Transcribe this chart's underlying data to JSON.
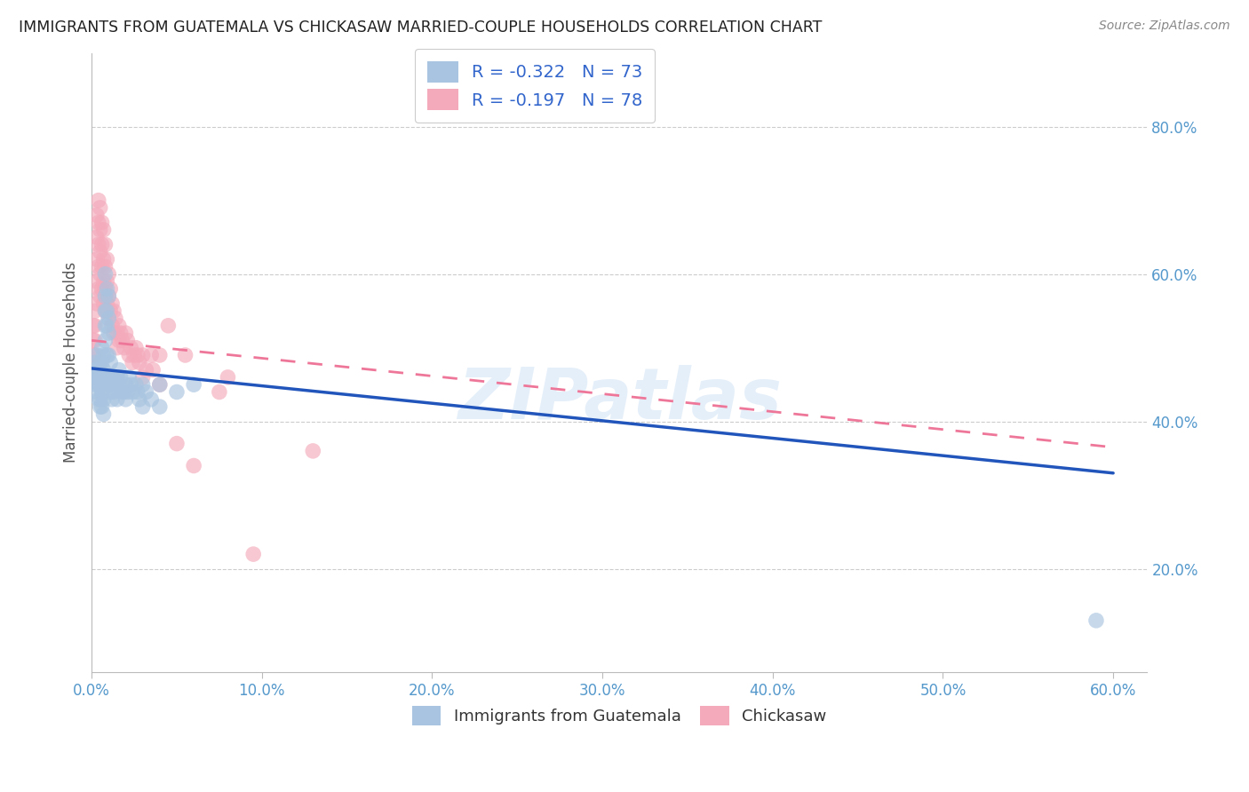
{
  "title": "IMMIGRANTS FROM GUATEMALA VS CHICKASAW MARRIED-COUPLE HOUSEHOLDS CORRELATION CHART",
  "source": "Source: ZipAtlas.com",
  "ylabel": "Married-couple Households",
  "x_tick_labels": [
    "0.0%",
    "",
    "",
    "",
    "",
    "",
    "",
    "",
    "10.0%",
    "",
    "",
    "",
    "",
    "",
    "",
    "",
    "20.0%",
    "",
    "",
    "",
    "",
    "",
    "",
    "",
    "30.0%",
    "",
    "",
    "",
    "",
    "",
    "",
    "",
    "40.0%",
    "",
    "",
    "",
    "",
    "",
    "",
    "",
    "50.0%",
    "",
    "",
    "",
    "",
    "",
    "",
    "",
    "60.0%"
  ],
  "x_tick_values_major": [
    0.0,
    0.1,
    0.2,
    0.3,
    0.4,
    0.5,
    0.6
  ],
  "x_tick_labels_major": [
    "0.0%",
    "10.0%",
    "20.0%",
    "30.0%",
    "40.0%",
    "50.0%",
    "60.0%"
  ],
  "y_tick_labels": [
    "20.0%",
    "40.0%",
    "60.0%",
    "80.0%"
  ],
  "y_tick_values": [
    0.2,
    0.4,
    0.6,
    0.8
  ],
  "xlim": [
    0.0,
    0.62
  ],
  "ylim": [
    0.06,
    0.9
  ],
  "legend_labels": [
    "Immigrants from Guatemala",
    "Chickasaw"
  ],
  "legend_r": [
    "R = -0.322",
    "R = -0.197"
  ],
  "legend_n": [
    "N = 73",
    "N = 78"
  ],
  "blue_color": "#A8C4E0",
  "pink_color": "#F4AABB",
  "line_blue": "#2255BB",
  "line_pink": "#EE7799",
  "watermark": "ZIPatlas",
  "blue_trend": [
    0.0,
    0.472,
    0.6,
    0.33
  ],
  "pink_trend": [
    0.0,
    0.51,
    0.6,
    0.365
  ],
  "blue_scatter": [
    [
      0.001,
      0.47
    ],
    [
      0.002,
      0.45
    ],
    [
      0.002,
      0.48
    ],
    [
      0.003,
      0.46
    ],
    [
      0.003,
      0.44
    ],
    [
      0.003,
      0.49
    ],
    [
      0.004,
      0.47
    ],
    [
      0.004,
      0.45
    ],
    [
      0.004,
      0.43
    ],
    [
      0.004,
      0.46
    ],
    [
      0.005,
      0.48
    ],
    [
      0.005,
      0.46
    ],
    [
      0.005,
      0.45
    ],
    [
      0.005,
      0.43
    ],
    [
      0.005,
      0.42
    ],
    [
      0.006,
      0.5
    ],
    [
      0.006,
      0.48
    ],
    [
      0.006,
      0.46
    ],
    [
      0.006,
      0.44
    ],
    [
      0.006,
      0.42
    ],
    [
      0.007,
      0.49
    ],
    [
      0.007,
      0.47
    ],
    [
      0.007,
      0.45
    ],
    [
      0.007,
      0.43
    ],
    [
      0.007,
      0.41
    ],
    [
      0.008,
      0.6
    ],
    [
      0.008,
      0.57
    ],
    [
      0.008,
      0.55
    ],
    [
      0.008,
      0.53
    ],
    [
      0.008,
      0.51
    ],
    [
      0.009,
      0.58
    ],
    [
      0.009,
      0.55
    ],
    [
      0.009,
      0.53
    ],
    [
      0.009,
      0.49
    ],
    [
      0.009,
      0.46
    ],
    [
      0.01,
      0.57
    ],
    [
      0.01,
      0.54
    ],
    [
      0.01,
      0.52
    ],
    [
      0.01,
      0.49
    ],
    [
      0.01,
      0.45
    ],
    [
      0.011,
      0.48
    ],
    [
      0.011,
      0.46
    ],
    [
      0.011,
      0.44
    ],
    [
      0.012,
      0.45
    ],
    [
      0.012,
      0.43
    ],
    [
      0.013,
      0.46
    ],
    [
      0.013,
      0.44
    ],
    [
      0.014,
      0.45
    ],
    [
      0.015,
      0.46
    ],
    [
      0.015,
      0.43
    ],
    [
      0.016,
      0.47
    ],
    [
      0.016,
      0.45
    ],
    [
      0.017,
      0.46
    ],
    [
      0.018,
      0.44
    ],
    [
      0.019,
      0.44
    ],
    [
      0.02,
      0.45
    ],
    [
      0.02,
      0.43
    ],
    [
      0.021,
      0.44
    ],
    [
      0.022,
      0.46
    ],
    [
      0.023,
      0.45
    ],
    [
      0.024,
      0.44
    ],
    [
      0.026,
      0.45
    ],
    [
      0.027,
      0.44
    ],
    [
      0.028,
      0.43
    ],
    [
      0.03,
      0.45
    ],
    [
      0.03,
      0.42
    ],
    [
      0.032,
      0.44
    ],
    [
      0.035,
      0.43
    ],
    [
      0.04,
      0.45
    ],
    [
      0.04,
      0.42
    ],
    [
      0.05,
      0.44
    ],
    [
      0.06,
      0.45
    ],
    [
      0.59,
      0.13
    ]
  ],
  "pink_scatter": [
    [
      0.001,
      0.53
    ],
    [
      0.001,
      0.51
    ],
    [
      0.001,
      0.49
    ],
    [
      0.002,
      0.55
    ],
    [
      0.002,
      0.53
    ],
    [
      0.002,
      0.51
    ],
    [
      0.002,
      0.49
    ],
    [
      0.003,
      0.68
    ],
    [
      0.003,
      0.65
    ],
    [
      0.003,
      0.62
    ],
    [
      0.003,
      0.59
    ],
    [
      0.003,
      0.56
    ],
    [
      0.004,
      0.7
    ],
    [
      0.004,
      0.67
    ],
    [
      0.004,
      0.64
    ],
    [
      0.004,
      0.61
    ],
    [
      0.004,
      0.58
    ],
    [
      0.005,
      0.69
    ],
    [
      0.005,
      0.66
    ],
    [
      0.005,
      0.63
    ],
    [
      0.005,
      0.6
    ],
    [
      0.005,
      0.57
    ],
    [
      0.006,
      0.67
    ],
    [
      0.006,
      0.64
    ],
    [
      0.006,
      0.61
    ],
    [
      0.006,
      0.58
    ],
    [
      0.007,
      0.66
    ],
    [
      0.007,
      0.62
    ],
    [
      0.007,
      0.59
    ],
    [
      0.007,
      0.56
    ],
    [
      0.008,
      0.64
    ],
    [
      0.008,
      0.61
    ],
    [
      0.008,
      0.58
    ],
    [
      0.008,
      0.55
    ],
    [
      0.009,
      0.62
    ],
    [
      0.009,
      0.59
    ],
    [
      0.009,
      0.56
    ],
    [
      0.01,
      0.6
    ],
    [
      0.01,
      0.57
    ],
    [
      0.01,
      0.54
    ],
    [
      0.011,
      0.58
    ],
    [
      0.011,
      0.55
    ],
    [
      0.012,
      0.56
    ],
    [
      0.012,
      0.53
    ],
    [
      0.013,
      0.55
    ],
    [
      0.013,
      0.52
    ],
    [
      0.014,
      0.54
    ],
    [
      0.015,
      0.52
    ],
    [
      0.015,
      0.5
    ],
    [
      0.016,
      0.53
    ],
    [
      0.016,
      0.51
    ],
    [
      0.017,
      0.52
    ],
    [
      0.018,
      0.51
    ],
    [
      0.019,
      0.5
    ],
    [
      0.02,
      0.52
    ],
    [
      0.021,
      0.51
    ],
    [
      0.022,
      0.49
    ],
    [
      0.023,
      0.5
    ],
    [
      0.024,
      0.48
    ],
    [
      0.025,
      0.49
    ],
    [
      0.026,
      0.5
    ],
    [
      0.027,
      0.49
    ],
    [
      0.028,
      0.48
    ],
    [
      0.03,
      0.49
    ],
    [
      0.03,
      0.46
    ],
    [
      0.032,
      0.47
    ],
    [
      0.035,
      0.49
    ],
    [
      0.036,
      0.47
    ],
    [
      0.04,
      0.49
    ],
    [
      0.04,
      0.45
    ],
    [
      0.045,
      0.53
    ],
    [
      0.05,
      0.37
    ],
    [
      0.055,
      0.49
    ],
    [
      0.06,
      0.34
    ],
    [
      0.075,
      0.44
    ],
    [
      0.08,
      0.46
    ],
    [
      0.095,
      0.22
    ],
    [
      0.13,
      0.36
    ]
  ]
}
